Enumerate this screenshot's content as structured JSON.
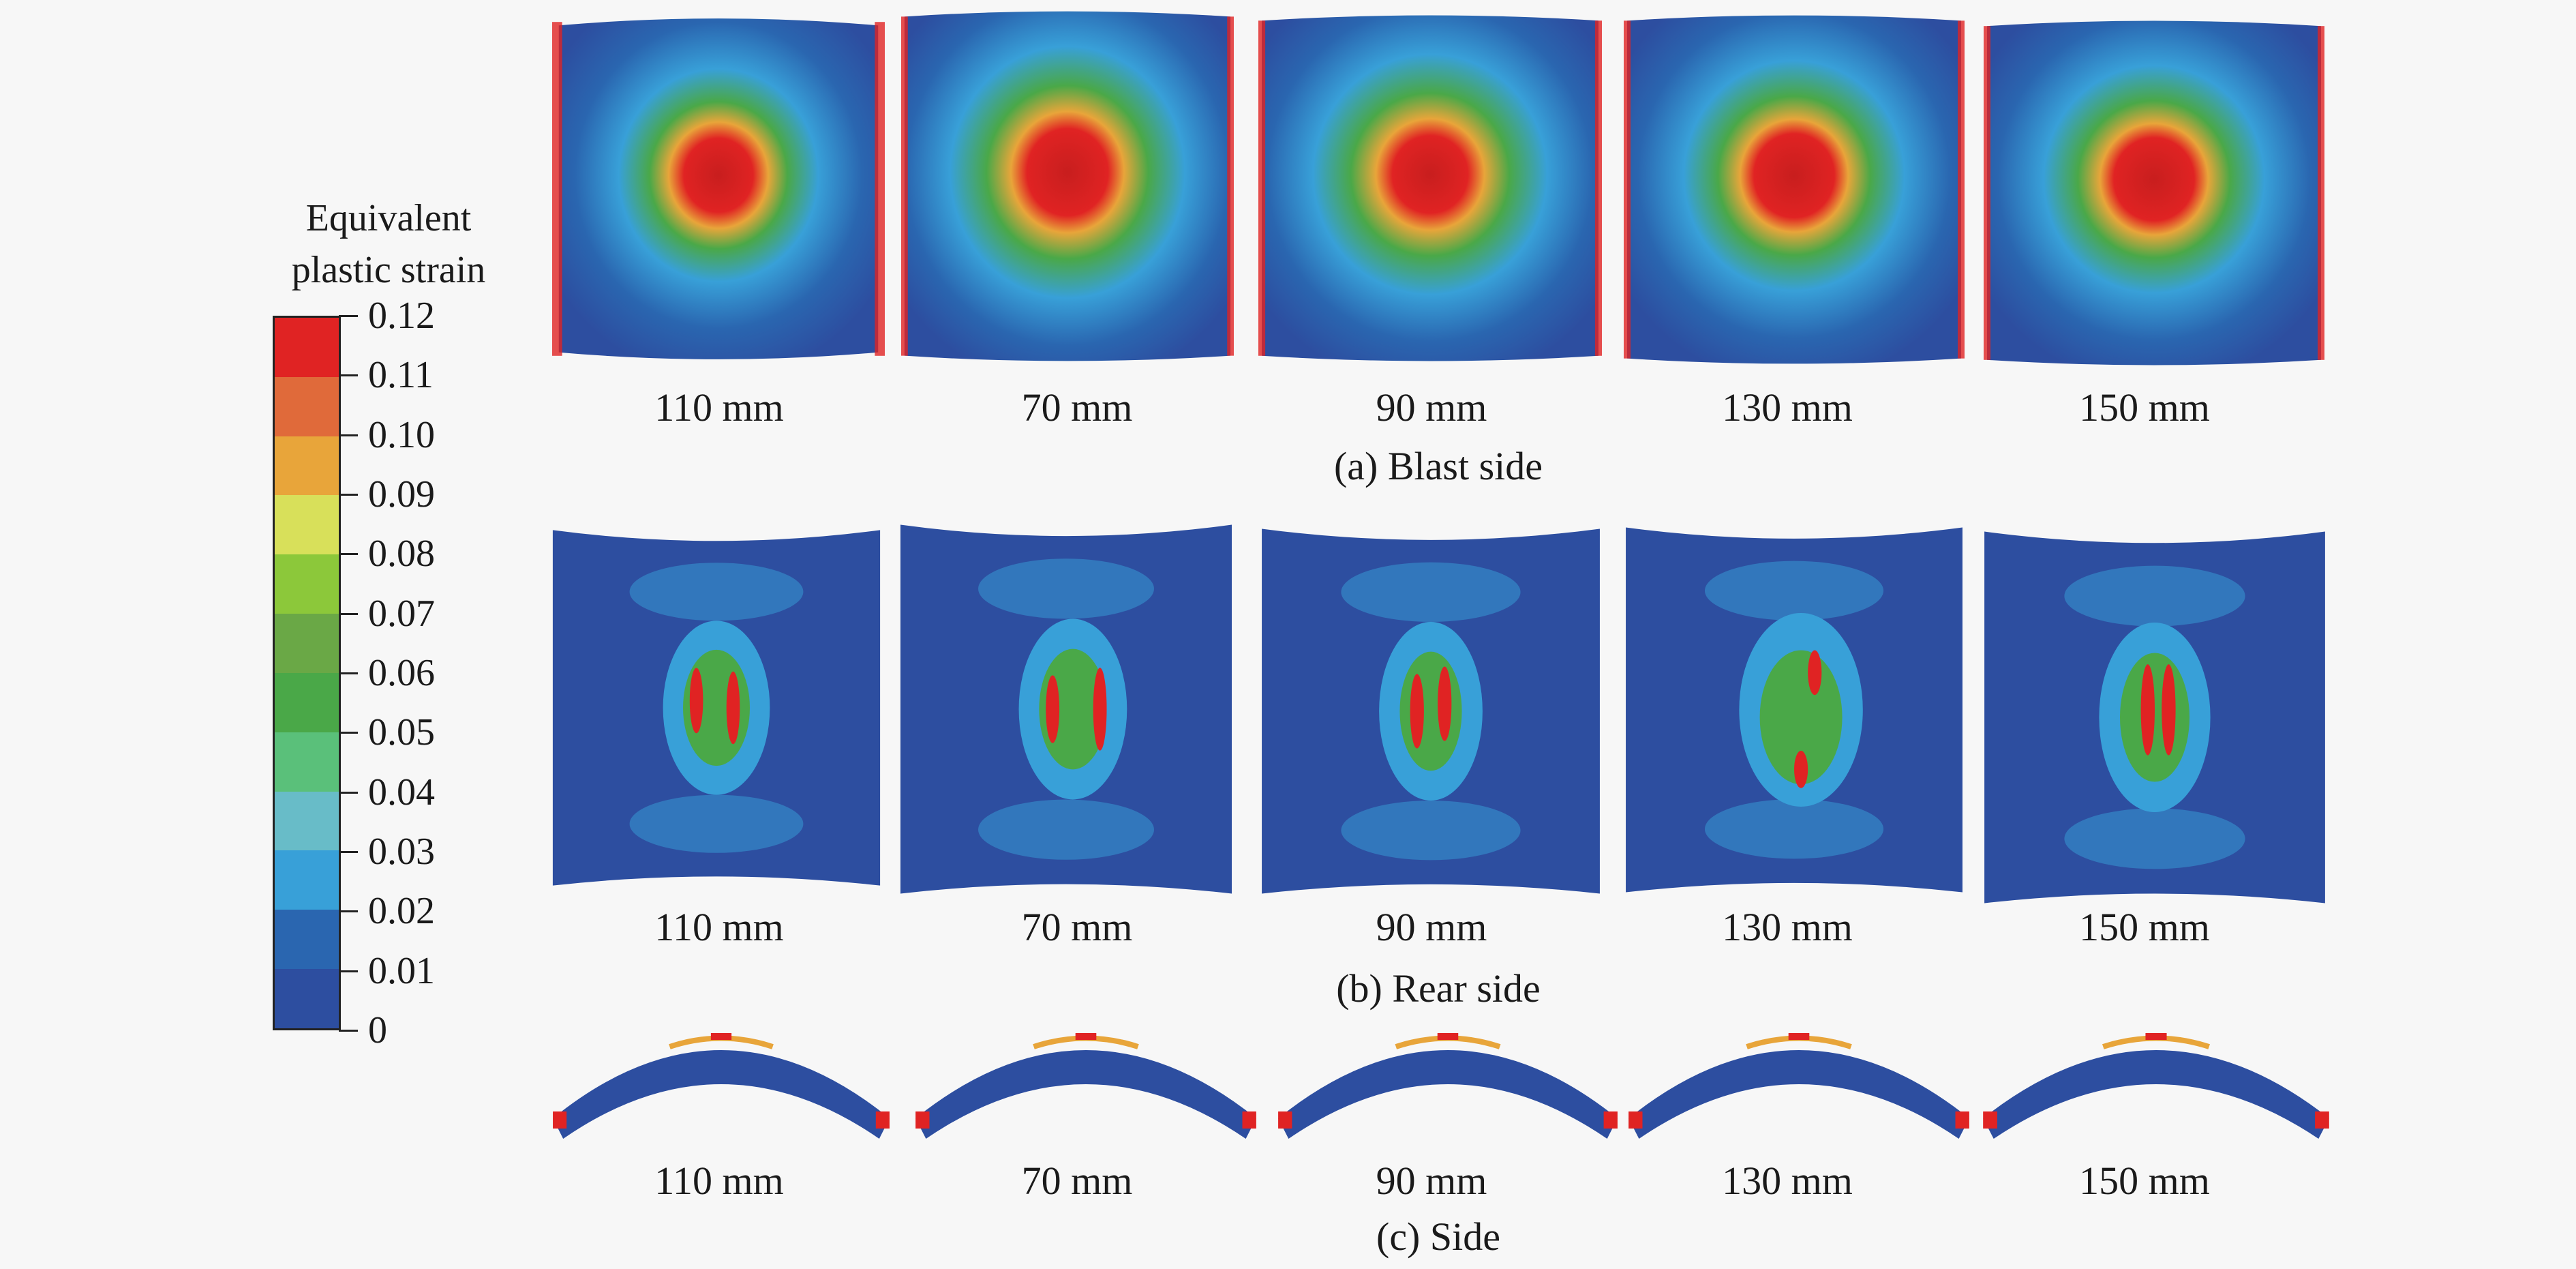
{
  "legend": {
    "title_line1": "Equivalent",
    "title_line2": "plastic strain",
    "ticks": [
      "0.12",
      "0.11",
      "0.10",
      "0.09",
      "0.08",
      "0.07",
      "0.06",
      "0.05",
      "0.04",
      "0.03",
      "0.02",
      "0.01",
      "0"
    ],
    "colors": [
      "#e02323",
      "#e06a3a",
      "#e8a53a",
      "#d8e05a",
      "#8cc83a",
      "#6aa846",
      "#4aa848",
      "#5ac07a",
      "#68bcc8",
      "#38a0d8",
      "#2a66b0",
      "#2d4ea0"
    ]
  },
  "rows": [
    {
      "section": "(a) Blast side",
      "labels": [
        "110 mm",
        "70 mm",
        "90 mm",
        "130 mm",
        "150 mm"
      ]
    },
    {
      "section": "(b) Rear side",
      "labels": [
        "110 mm",
        "70 mm",
        "90 mm",
        "130 mm",
        "150 mm"
      ]
    },
    {
      "section": "(c) Side",
      "labels": [
        "110 mm",
        "70 mm",
        "90 mm",
        "130 mm",
        "150 mm"
      ]
    }
  ]
}
